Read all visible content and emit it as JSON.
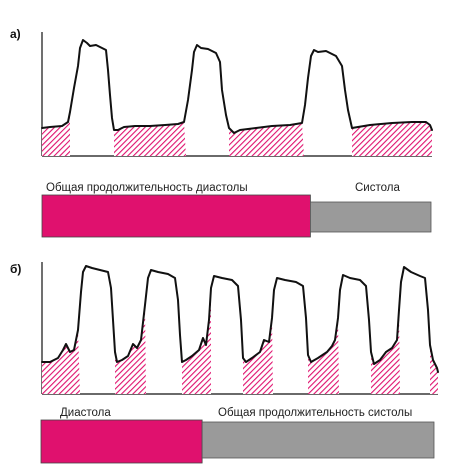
{
  "panel_a": {
    "letter": "а)",
    "bar": {
      "diastole_label": "Общая продолжительность диастолы",
      "systole_label": "Систола",
      "diastole_fraction": 0.69
    }
  },
  "panel_b": {
    "letter": "б)",
    "bar": {
      "diastole_label": "Диастола",
      "systole_label": "Общая продолжительность систолы",
      "diastole_fraction": 0.41
    }
  },
  "colors": {
    "diastole": "#e0116e",
    "systole": "#9a9a9a",
    "hatch": "#e0116e",
    "line": "#111111"
  }
}
